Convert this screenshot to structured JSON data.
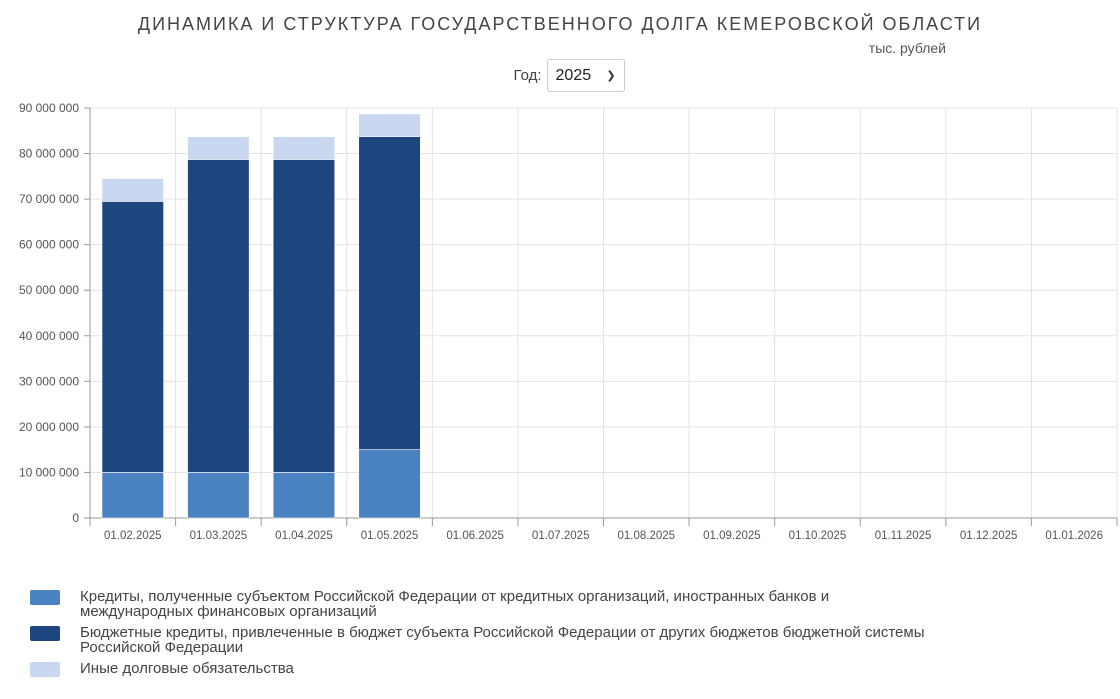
{
  "header": {
    "title": "ДИНАМИКА И СТРУКТУРА ГОСУДАРСТВЕННОГО ДОЛГА КЕМЕРОВСКОЙ ОБЛАСТИ",
    "unit": "тыс. рублей"
  },
  "filter": {
    "year_label": "Год:",
    "year_value": "2025"
  },
  "chart_data": {
    "type": "bar",
    "stacked": true,
    "categories": [
      "01.02.2025",
      "01.03.2025",
      "01.04.2025",
      "01.05.2025",
      "01.06.2025",
      "01.07.2025",
      "01.08.2025",
      "01.09.2025",
      "01.10.2025",
      "01.11.2025",
      "01.12.2025",
      "01.01.2026"
    ],
    "series": [
      {
        "name": "Кредиты, полученные субъектом Российской Федерации от кредитных организаций, иностранных банков и международных финансовых организаций",
        "color": "#4a81c0",
        "values": [
          10000000,
          10000000,
          10000000,
          15000000,
          null,
          null,
          null,
          null,
          null,
          null,
          null,
          null
        ]
      },
      {
        "name": "Бюджетные кредиты, привлеченные в бюджет субъекта Российской Федерации от других бюджетов бюджетной системы Российской Федерации",
        "color": "#1e467e",
        "values": [
          59500000,
          68700000,
          68700000,
          68700000,
          null,
          null,
          null,
          null,
          null,
          null,
          null,
          null
        ]
      },
      {
        "name": "Иные долговые обязательства",
        "color": "#c9d7f0",
        "values": [
          5000000,
          5000000,
          5000000,
          5000000,
          null,
          null,
          null,
          null,
          null,
          null,
          null,
          null
        ]
      }
    ],
    "ylim": [
      0,
      90000000
    ],
    "yticks": [
      0,
      10000000,
      20000000,
      30000000,
      40000000,
      50000000,
      60000000,
      70000000,
      80000000,
      90000000
    ],
    "ytick_labels": [
      "0",
      "10 000 000",
      "20 000 000",
      "30 000 000",
      "40 000 000",
      "50 000 000",
      "60 000 000",
      "70 000 000",
      "80 000 000",
      "90 000 000"
    ],
    "grid": true,
    "legend": "bottom-left"
  }
}
